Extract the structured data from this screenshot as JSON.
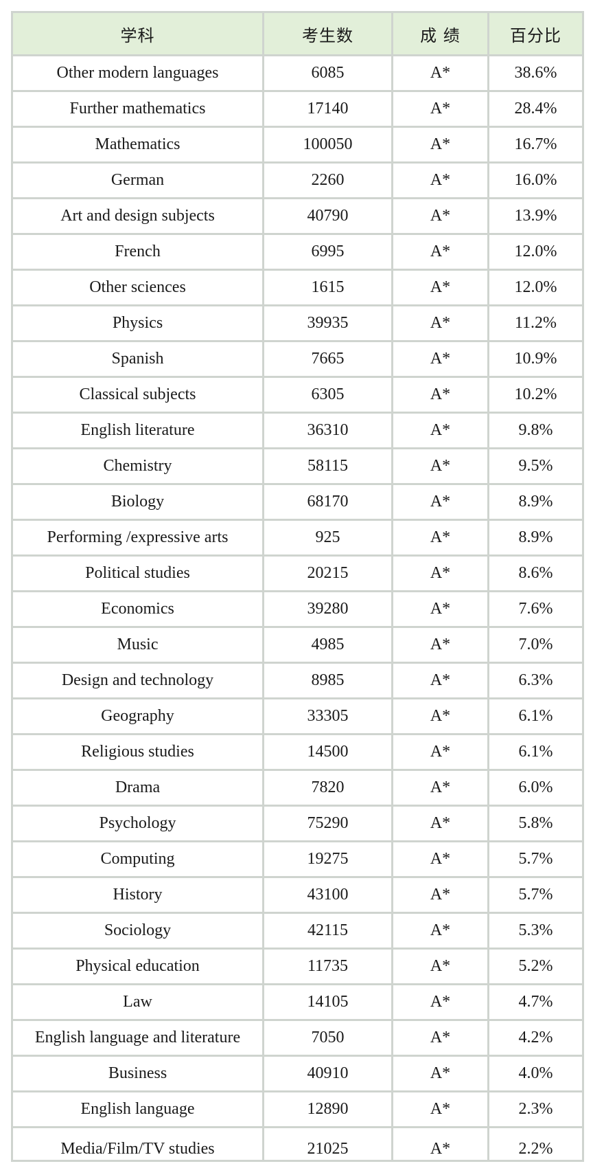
{
  "table": {
    "headers": [
      "学科",
      "考生数",
      "成 绩",
      "百分比"
    ],
    "rows": [
      {
        "subject": "Other modern languages",
        "candidates": "6085",
        "grade": "A*",
        "percent": "38.6%"
      },
      {
        "subject": "Further mathematics",
        "candidates": "17140",
        "grade": "A*",
        "percent": "28.4%"
      },
      {
        "subject": "Mathematics",
        "candidates": "100050",
        "grade": "A*",
        "percent": "16.7%"
      },
      {
        "subject": "German",
        "candidates": "2260",
        "grade": "A*",
        "percent": "16.0%"
      },
      {
        "subject": "Art and design subjects",
        "candidates": "40790",
        "grade": "A*",
        "percent": "13.9%"
      },
      {
        "subject": "French",
        "candidates": "6995",
        "grade": "A*",
        "percent": "12.0%"
      },
      {
        "subject": "Other sciences",
        "candidates": "1615",
        "grade": "A*",
        "percent": "12.0%"
      },
      {
        "subject": "Physics",
        "candidates": "39935",
        "grade": "A*",
        "percent": "11.2%"
      },
      {
        "subject": "Spanish",
        "candidates": "7665",
        "grade": "A*",
        "percent": "10.9%"
      },
      {
        "subject": "Classical subjects",
        "candidates": "6305",
        "grade": "A*",
        "percent": "10.2%"
      },
      {
        "subject": "English literature",
        "candidates": "36310",
        "grade": "A*",
        "percent": "9.8%"
      },
      {
        "subject": "Chemistry",
        "candidates": "58115",
        "grade": "A*",
        "percent": "9.5%"
      },
      {
        "subject": "Biology",
        "candidates": "68170",
        "grade": "A*",
        "percent": "8.9%"
      },
      {
        "subject": "Performing /expressive arts",
        "candidates": "925",
        "grade": "A*",
        "percent": "8.9%"
      },
      {
        "subject": "Political studies",
        "candidates": "20215",
        "grade": "A*",
        "percent": "8.6%"
      },
      {
        "subject": "Economics",
        "candidates": "39280",
        "grade": "A*",
        "percent": "7.6%"
      },
      {
        "subject": "Music",
        "candidates": "4985",
        "grade": "A*",
        "percent": "7.0%"
      },
      {
        "subject": "Design and technology",
        "candidates": "8985",
        "grade": "A*",
        "percent": "6.3%"
      },
      {
        "subject": "Geography",
        "candidates": "33305",
        "grade": "A*",
        "percent": "6.1%"
      },
      {
        "subject": "Religious studies",
        "candidates": "14500",
        "grade": "A*",
        "percent": "6.1%"
      },
      {
        "subject": "Drama",
        "candidates": "7820",
        "grade": "A*",
        "percent": "6.0%"
      },
      {
        "subject": "Psychology",
        "candidates": "75290",
        "grade": "A*",
        "percent": "5.8%"
      },
      {
        "subject": "Computing",
        "candidates": "19275",
        "grade": "A*",
        "percent": "5.7%"
      },
      {
        "subject": "History",
        "candidates": "43100",
        "grade": "A*",
        "percent": "5.7%"
      },
      {
        "subject": "Sociology",
        "candidates": "42115",
        "grade": "A*",
        "percent": "5.3%"
      },
      {
        "subject": "Physical education",
        "candidates": "11735",
        "grade": "A*",
        "percent": "5.2%"
      },
      {
        "subject": "Law",
        "candidates": "14105",
        "grade": "A*",
        "percent": "4.7%"
      },
      {
        "subject": "English language and literature",
        "candidates": "7050",
        "grade": "A*",
        "percent": "4.2%"
      },
      {
        "subject": "Business",
        "candidates": "40910",
        "grade": "A*",
        "percent": "4.0%"
      },
      {
        "subject": "English language",
        "candidates": "12890",
        "grade": "A*",
        "percent": "2.3%"
      },
      {
        "subject": "Media/Film/TV studies",
        "candidates": "21025",
        "grade": "A*",
        "percent": "2.2%"
      }
    ]
  }
}
